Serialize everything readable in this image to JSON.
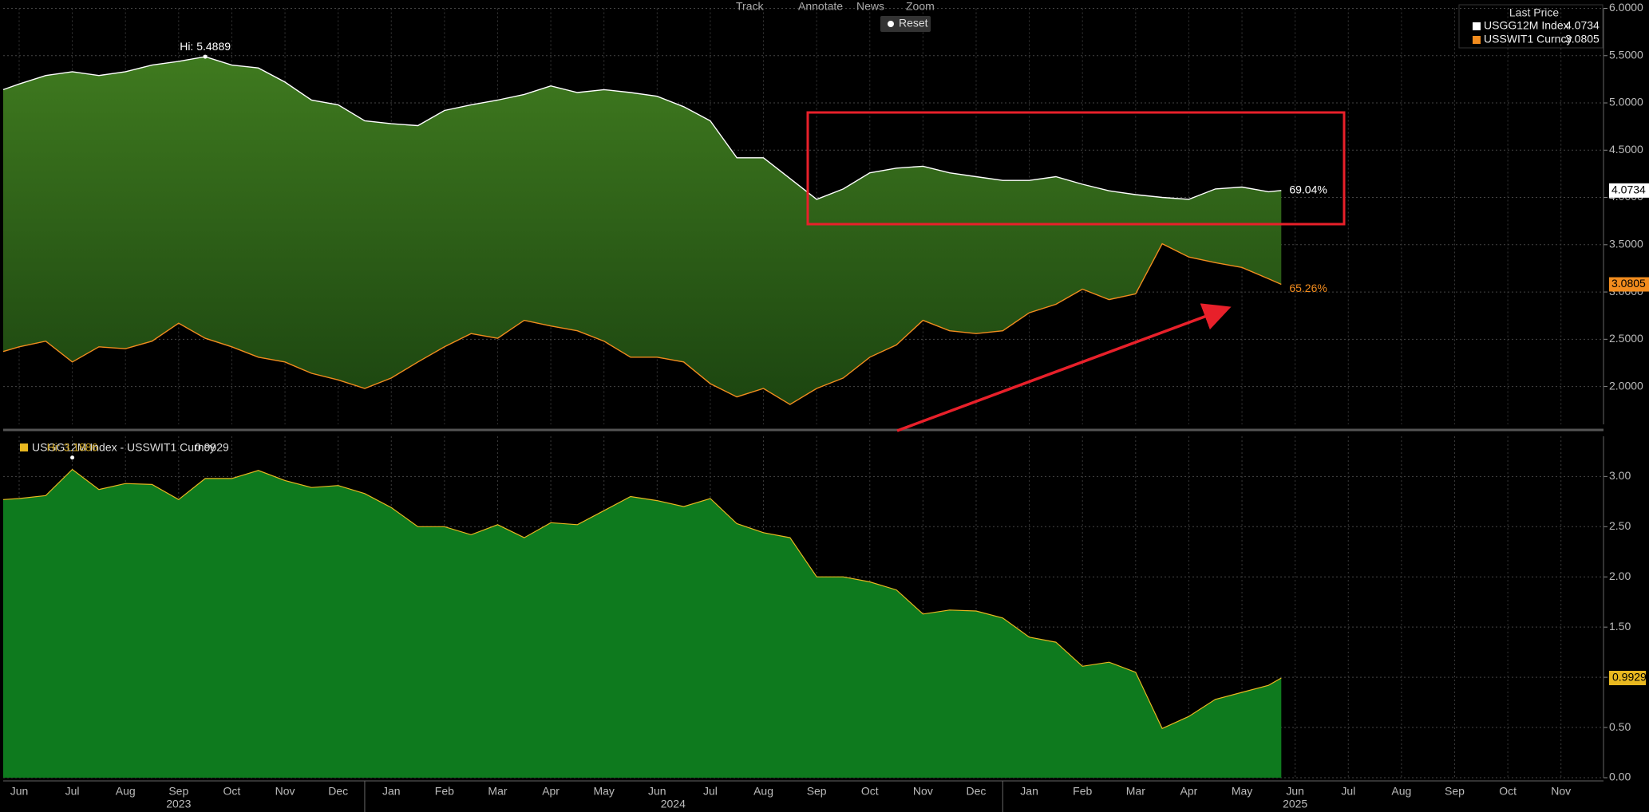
{
  "toolbar": [
    "Track",
    "Annotate",
    "News",
    "Zoom"
  ],
  "reset": "Reset",
  "chart_data": [
    {
      "type": "band",
      "legend_title": "Last Price",
      "fill": [
        "#3f7a1f",
        "#1c4510"
      ],
      "grid": true,
      "xlim": [
        -0.3,
        29.8
      ],
      "ylim": [
        1.6,
        6.0
      ],
      "yticks": [
        {
          "value": 2,
          "label": "2.0000"
        },
        {
          "value": 2.5,
          "label": "2.5000"
        },
        {
          "value": 3,
          "label": "3.0000"
        },
        {
          "value": 3.5,
          "label": "3.5000"
        },
        {
          "value": 4,
          "label": "4.0000"
        },
        {
          "value": 4.5,
          "label": "4.5000"
        },
        {
          "value": 5,
          "label": "5.0000"
        },
        {
          "value": 5.5,
          "label": "5.5000"
        },
        {
          "value": 6,
          "label": "6.0000"
        }
      ],
      "x": [
        -0.3,
        0,
        0.5,
        1,
        1.5,
        2,
        2.5,
        3,
        3.5,
        4,
        4.5,
        5,
        5.5,
        6,
        6.5,
        7,
        7.5,
        8,
        8.5,
        9,
        9.5,
        10,
        10.5,
        11,
        11.5,
        12,
        12.5,
        13,
        13.5,
        14,
        14.5,
        15,
        15.5,
        16,
        16.5,
        17,
        17.5,
        18,
        18.5,
        19,
        19.5,
        20,
        20.5,
        21,
        21.5,
        22,
        22.5,
        23,
        23.5,
        23.74
      ],
      "series": [
        {
          "name": "USGG12M Index",
          "color": "#ffffff",
          "last_value": 4.0734,
          "pct_label": "69.04%",
          "values": [
            5.14,
            5.2,
            5.29,
            5.33,
            5.29,
            5.33,
            5.4,
            5.44,
            5.4889,
            5.4,
            5.37,
            5.22,
            5.03,
            4.98,
            4.81,
            4.78,
            4.76,
            4.92,
            4.98,
            5.03,
            5.09,
            5.18,
            5.11,
            5.14,
            5.11,
            5.07,
            4.96,
            4.81,
            4.42,
            4.42,
            4.2,
            3.98,
            4.09,
            4.26,
            4.31,
            4.33,
            4.26,
            4.22,
            4.18,
            4.18,
            4.22,
            4.14,
            4.07,
            4.03,
            4.0,
            3.98,
            4.09,
            4.11,
            4.06,
            4.0734
          ]
        },
        {
          "name": "USSWIT1 Curncy",
          "color": "#f28c1e",
          "last_value": 3.0805,
          "pct_label": "65.26%",
          "values": [
            2.37,
            2.42,
            2.48,
            2.26,
            2.42,
            2.4,
            2.48,
            2.67,
            2.51,
            2.42,
            2.31,
            2.26,
            2.14,
            2.07,
            1.98,
            2.09,
            2.26,
            2.42,
            2.56,
            2.51,
            2.7,
            2.64,
            2.59,
            2.48,
            2.31,
            2.31,
            2.26,
            2.03,
            1.89,
            1.98,
            1.81,
            1.98,
            2.09,
            2.31,
            2.44,
            2.7,
            2.59,
            2.56,
            2.59,
            2.78,
            2.87,
            3.03,
            2.92,
            2.98,
            3.51,
            3.37,
            3.31,
            3.26,
            3.14,
            3.0805
          ]
        }
      ],
      "high": {
        "label": "Hi: 5.4889",
        "x": 3.5,
        "value": 5.4889
      }
    },
    {
      "type": "area",
      "grid": true,
      "xlim": [
        -0.3,
        29.8
      ],
      "ylim": [
        0,
        3.4
      ],
      "yticks": [
        {
          "value": 0,
          "label": "0.00"
        },
        {
          "value": 0.5,
          "label": "0.50"
        },
        {
          "value": 1,
          "label": "1.00"
        },
        {
          "value": 1.5,
          "label": "1.50"
        },
        {
          "value": 2,
          "label": "2.00"
        },
        {
          "value": 2.5,
          "label": "2.50"
        },
        {
          "value": 3,
          "label": "3.00"
        }
      ],
      "x": [
        -0.3,
        0,
        0.5,
        1,
        1.5,
        2,
        2.5,
        3,
        3.5,
        4,
        4.5,
        5,
        5.5,
        6,
        6.5,
        7,
        7.5,
        8,
        8.5,
        9,
        9.5,
        10,
        10.5,
        11,
        11.5,
        12,
        12.5,
        13,
        13.5,
        14,
        14.5,
        15,
        15.5,
        16,
        16.5,
        17,
        17.5,
        18,
        18.5,
        19,
        19.5,
        20,
        20.5,
        21,
        21.5,
        22,
        22.5,
        23,
        23.5,
        23.74
      ],
      "series": [
        {
          "name": "USGG12M Index - USSWIT1 Curncy",
          "color": "#e8b820",
          "fill": "#0e7a1e",
          "last_value": 0.9929,
          "values": [
            2.77,
            2.78,
            2.81,
            3.07,
            2.87,
            2.93,
            2.92,
            2.77,
            2.98,
            2.98,
            3.06,
            2.96,
            2.89,
            2.91,
            2.83,
            2.69,
            2.5,
            2.5,
            2.42,
            2.52,
            2.39,
            2.54,
            2.52,
            2.66,
            2.8,
            2.76,
            2.7,
            2.78,
            2.53,
            2.44,
            2.39,
            2.0,
            2.0,
            1.95,
            1.87,
            1.63,
            1.67,
            1.66,
            1.59,
            1.4,
            1.35,
            1.11,
            1.15,
            1.05,
            0.49,
            0.61,
            0.78,
            0.85,
            0.92,
            0.9929
          ]
        }
      ],
      "high": {
        "label": "Hi: 3.1886",
        "x": 1,
        "value": 3.1886
      },
      "xticks": [
        {
          "value": 0,
          "label": "Jun"
        },
        {
          "value": 1,
          "label": "Jul"
        },
        {
          "value": 2,
          "label": "Aug"
        },
        {
          "value": 3,
          "label": "Sep"
        },
        {
          "value": 4,
          "label": "Oct"
        },
        {
          "value": 5,
          "label": "Nov"
        },
        {
          "value": 6,
          "label": "Dec"
        },
        {
          "value": 7,
          "label": "Jan"
        },
        {
          "value": 8,
          "label": "Feb"
        },
        {
          "value": 9,
          "label": "Mar"
        },
        {
          "value": 10,
          "label": "Apr"
        },
        {
          "value": 11,
          "label": "May"
        },
        {
          "value": 12,
          "label": "Jun"
        },
        {
          "value": 13,
          "label": "Jul"
        },
        {
          "value": 14,
          "label": "Aug"
        },
        {
          "value": 15,
          "label": "Sep"
        },
        {
          "value": 16,
          "label": "Oct"
        },
        {
          "value": 17,
          "label": "Nov"
        },
        {
          "value": 18,
          "label": "Dec"
        },
        {
          "value": 19,
          "label": "Jan"
        },
        {
          "value": 20,
          "label": "Feb"
        },
        {
          "value": 21,
          "label": "Mar"
        },
        {
          "value": 22,
          "label": "Apr"
        },
        {
          "value": 23,
          "label": "May"
        },
        {
          "value": 24,
          "label": "Jun"
        },
        {
          "value": 25,
          "label": "Jul"
        },
        {
          "value": 26,
          "label": "Aug"
        },
        {
          "value": 27,
          "label": "Sep"
        },
        {
          "value": 28,
          "label": "Oct"
        },
        {
          "value": 29,
          "label": "Nov"
        }
      ],
      "year_labels": [
        {
          "value": 3,
          "label": "2023"
        },
        {
          "value": 12.3,
          "label": "2024"
        },
        {
          "value": 24,
          "label": "2025"
        }
      ]
    }
  ]
}
